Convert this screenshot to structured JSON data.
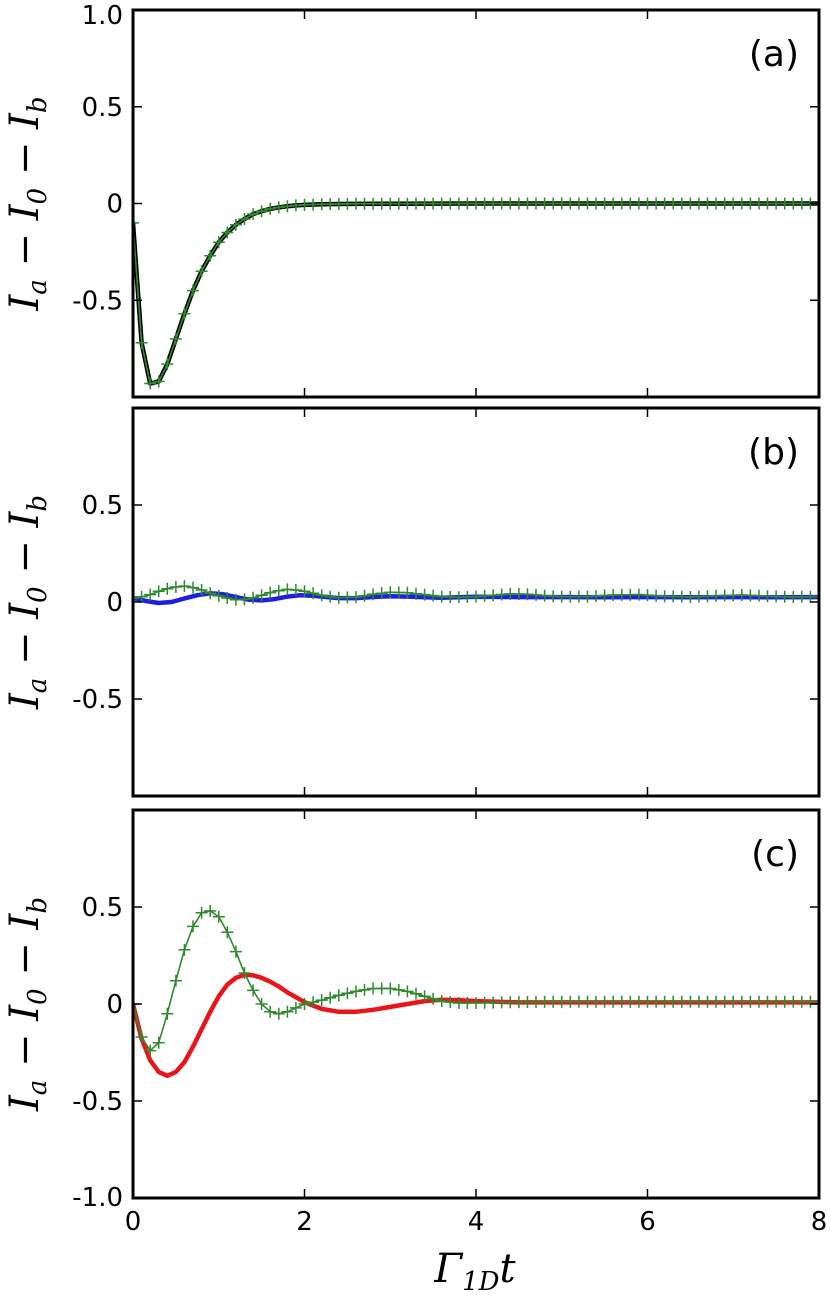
{
  "chart_data": [
    {
      "type": "line",
      "panel_label": "(a)",
      "ylabel": "I_a − I_0 − I_b",
      "xlim": [
        0,
        8
      ],
      "ylim": [
        -1.0,
        1.0
      ],
      "x_ticks": [
        0,
        2,
        4,
        6,
        8
      ],
      "x_tick_labels": [
        "",
        "",
        "",
        "",
        ""
      ],
      "y_ticks": [
        1.0,
        0.5,
        0,
        -0.5
      ],
      "y_tick_labels": [
        "1.0",
        "0.5",
        "0",
        "-0.5"
      ],
      "grid": false,
      "series": [
        {
          "color": "#000000",
          "style": "solid-thick",
          "x": [
            0,
            0.1,
            0.2,
            0.3,
            0.4,
            0.5,
            0.6,
            0.7,
            0.8,
            0.9,
            1.0,
            1.1,
            1.2,
            1.3,
            1.4,
            1.5,
            1.6,
            1.7,
            1.8,
            1.9,
            2.0,
            2.2,
            2.5,
            3.0,
            4.0,
            5.0,
            6.0,
            7.0,
            8.0
          ],
          "y": [
            -0.1,
            -0.72,
            -0.93,
            -0.92,
            -0.83,
            -0.7,
            -0.57,
            -0.45,
            -0.35,
            -0.27,
            -0.2,
            -0.15,
            -0.11,
            -0.08,
            -0.055,
            -0.04,
            -0.028,
            -0.02,
            -0.014,
            -0.01,
            -0.007,
            -0.004,
            -0.002,
            -0.001,
            0,
            0,
            0,
            0,
            0
          ]
        },
        {
          "color": "#2f8a2f",
          "style": "thin-plus",
          "x": [
            0,
            0.1,
            0.2,
            0.3,
            0.4,
            0.5,
            0.6,
            0.7,
            0.8,
            0.9,
            1.0,
            1.1,
            1.2,
            1.3,
            1.4,
            1.5,
            1.6,
            1.7,
            1.8,
            1.9,
            2.0,
            2.2,
            2.5,
            3.0,
            4.0,
            5.0,
            6.0,
            7.0,
            8.0
          ],
          "y": [
            -0.1,
            -0.72,
            -0.93,
            -0.92,
            -0.83,
            -0.7,
            -0.57,
            -0.45,
            -0.35,
            -0.27,
            -0.2,
            -0.15,
            -0.11,
            -0.08,
            -0.055,
            -0.04,
            -0.028,
            -0.02,
            -0.014,
            -0.01,
            -0.007,
            -0.004,
            -0.002,
            -0.001,
            0,
            0,
            0,
            0,
            0
          ]
        }
      ]
    },
    {
      "type": "line",
      "panel_label": "(b)",
      "ylabel": "I_a − I_0 − I_b",
      "xlim": [
        0,
        8
      ],
      "ylim": [
        -1.0,
        1.0
      ],
      "x_ticks": [
        0,
        2,
        4,
        6,
        8
      ],
      "x_tick_labels": [
        "",
        "",
        "",
        "",
        ""
      ],
      "y_ticks": [
        0.5,
        0,
        -0.5
      ],
      "y_tick_labels": [
        "0.5",
        "0",
        "-0.5"
      ],
      "grid": false,
      "series": [
        {
          "color": "#1f1fe0",
          "style": "solid-thick",
          "x": [
            0,
            0.15,
            0.3,
            0.45,
            0.6,
            0.75,
            0.9,
            1.05,
            1.2,
            1.35,
            1.5,
            1.65,
            1.8,
            1.95,
            2.1,
            2.25,
            2.4,
            2.6,
            2.8,
            3.0,
            3.2,
            3.4,
            3.6,
            3.8,
            4.0,
            4.5,
            5.0,
            5.5,
            6.0,
            6.5,
            7.0,
            7.5,
            8.0
          ],
          "y": [
            0.02,
            0.005,
            -0.005,
            0.0,
            0.018,
            0.035,
            0.045,
            0.04,
            0.025,
            0.012,
            0.008,
            0.015,
            0.028,
            0.035,
            0.032,
            0.026,
            0.02,
            0.02,
            0.026,
            0.03,
            0.028,
            0.024,
            0.022,
            0.024,
            0.027,
            0.025,
            0.025,
            0.024,
            0.025,
            0.024,
            0.025,
            0.024,
            0.025
          ]
        },
        {
          "color": "#2f8a2f",
          "style": "thin-plus",
          "x": [
            0,
            0.15,
            0.3,
            0.45,
            0.6,
            0.75,
            0.9,
            1.05,
            1.2,
            1.35,
            1.5,
            1.65,
            1.8,
            1.95,
            2.1,
            2.25,
            2.4,
            2.6,
            2.8,
            3.0,
            3.2,
            3.4,
            3.6,
            3.8,
            4.0,
            4.2,
            4.4,
            4.6,
            4.8,
            5.0,
            5.3,
            5.6,
            5.9,
            6.2,
            6.5,
            6.8,
            7.1,
            7.4,
            7.7,
            8.0
          ],
          "y": [
            0.02,
            0.03,
            0.055,
            0.075,
            0.082,
            0.07,
            0.045,
            0.025,
            0.012,
            0.015,
            0.035,
            0.055,
            0.065,
            0.06,
            0.045,
            0.03,
            0.022,
            0.025,
            0.04,
            0.05,
            0.048,
            0.038,
            0.028,
            0.024,
            0.028,
            0.035,
            0.042,
            0.04,
            0.033,
            0.027,
            0.028,
            0.036,
            0.038,
            0.03,
            0.026,
            0.032,
            0.036,
            0.03,
            0.026,
            0.028
          ]
        }
      ]
    },
    {
      "type": "line",
      "panel_label": "(c)",
      "ylabel": "I_a − I_0 − I_b",
      "xlabel": "Γ_1D t",
      "xlim": [
        0,
        8
      ],
      "ylim": [
        -1.0,
        1.0
      ],
      "x_ticks": [
        0,
        2,
        4,
        6,
        8
      ],
      "x_tick_labels": [
        "0",
        "2",
        "4",
        "6",
        "8"
      ],
      "y_ticks": [
        0.5,
        0,
        -0.5,
        -1.0
      ],
      "y_tick_labels": [
        "0.5",
        "0",
        "-0.5",
        "-1.0"
      ],
      "grid": false,
      "series": [
        {
          "color": "#e8161b",
          "style": "solid-thick",
          "x": [
            0,
            0.1,
            0.2,
            0.3,
            0.4,
            0.5,
            0.6,
            0.7,
            0.8,
            0.9,
            1.0,
            1.1,
            1.2,
            1.3,
            1.4,
            1.5,
            1.6,
            1.7,
            1.8,
            1.9,
            2.0,
            2.2,
            2.4,
            2.6,
            2.8,
            3.0,
            3.2,
            3.4,
            3.6,
            3.8,
            4.0,
            4.5,
            5.0,
            6.0,
            7.0,
            8.0
          ],
          "y": [
            0,
            -0.18,
            -0.29,
            -0.35,
            -0.37,
            -0.35,
            -0.3,
            -0.22,
            -0.13,
            -0.04,
            0.04,
            0.1,
            0.135,
            0.15,
            0.148,
            0.135,
            0.115,
            0.09,
            0.06,
            0.035,
            0.01,
            -0.025,
            -0.04,
            -0.04,
            -0.03,
            -0.015,
            0.0,
            0.015,
            0.022,
            0.02,
            0.015,
            0.008,
            0.008,
            0.008,
            0.008,
            0.008
          ]
        },
        {
          "color": "#2f8a2f",
          "style": "thin-plus",
          "x": [
            0,
            0.1,
            0.2,
            0.3,
            0.4,
            0.5,
            0.6,
            0.7,
            0.8,
            0.9,
            1.0,
            1.1,
            1.2,
            1.3,
            1.4,
            1.5,
            1.6,
            1.7,
            1.8,
            1.9,
            2.0,
            2.2,
            2.4,
            2.6,
            2.8,
            3.0,
            3.2,
            3.4,
            3.6,
            3.8,
            4.0,
            4.5,
            5.0,
            6.0,
            7.0,
            8.0
          ],
          "y": [
            0,
            -0.17,
            -0.24,
            -0.2,
            -0.05,
            0.12,
            0.28,
            0.4,
            0.47,
            0.48,
            0.45,
            0.37,
            0.27,
            0.16,
            0.07,
            0.0,
            -0.04,
            -0.05,
            -0.04,
            -0.02,
            0.0,
            0.02,
            0.045,
            0.065,
            0.08,
            0.08,
            0.065,
            0.04,
            0.015,
            0.005,
            0.005,
            0.01,
            0.012,
            0.012,
            0.012,
            0.012
          ]
        }
      ]
    }
  ]
}
